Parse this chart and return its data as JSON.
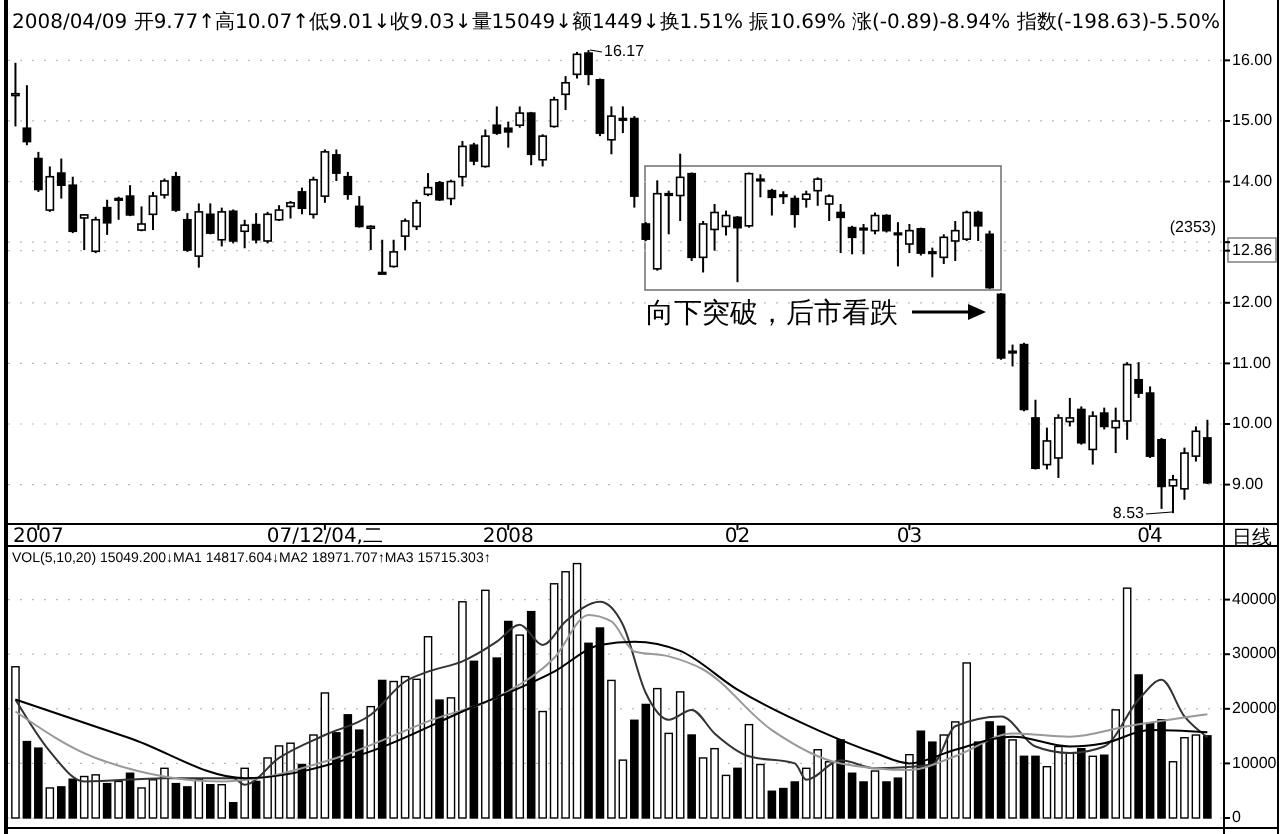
{
  "chart_data": [
    {
      "type": "candlestick",
      "categories": [
        null,
        null,
        "2007",
        null,
        null,
        null,
        null,
        null,
        null,
        null,
        null,
        null,
        null,
        null,
        null,
        null,
        null,
        null,
        null,
        null,
        null,
        null,
        null,
        null,
        null,
        null,
        null,
        "07/12/04,二",
        null,
        null,
        null,
        null,
        null,
        null,
        null,
        null,
        null,
        null,
        null,
        null,
        null,
        null,
        null,
        "2008",
        null,
        null,
        null,
        null,
        null,
        null,
        null,
        null,
        null,
        null,
        null,
        null,
        null,
        null,
        null,
        null,
        null,
        null,
        null,
        "02",
        null,
        null,
        null,
        null,
        null,
        null,
        null,
        null,
        null,
        null,
        null,
        null,
        null,
        null,
        "03",
        null,
        null,
        null,
        null,
        null,
        null,
        null,
        null,
        null,
        null,
        null,
        null,
        null,
        null,
        null,
        null,
        null,
        null,
        null,
        null,
        "04",
        null,
        null,
        null,
        null,
        null
      ],
      "ohlc": [
        [
          15.42,
          15.96,
          14.91,
          15.45
        ],
        [
          14.88,
          15.59,
          14.6,
          14.66
        ],
        [
          14.38,
          14.49,
          13.83,
          13.87
        ],
        [
          13.53,
          14.25,
          13.5,
          14.08
        ],
        [
          14.14,
          14.38,
          13.72,
          13.94
        ],
        [
          13.94,
          14.08,
          13.15,
          13.18
        ],
        [
          13.4,
          13.46,
          12.87,
          13.45
        ],
        [
          12.85,
          13.42,
          12.82,
          13.37
        ],
        [
          13.57,
          13.7,
          13.12,
          13.32
        ],
        [
          13.7,
          13.75,
          13.37,
          13.72
        ],
        [
          13.76,
          13.94,
          13.43,
          13.45
        ],
        [
          13.2,
          13.59,
          13.18,
          13.3
        ],
        [
          13.46,
          13.83,
          13.2,
          13.76
        ],
        [
          13.78,
          14.05,
          13.72,
          14.01
        ],
        [
          14.08,
          14.16,
          13.5,
          13.53
        ],
        [
          13.37,
          13.48,
          12.84,
          12.87
        ],
        [
          12.77,
          13.64,
          12.58,
          13.5
        ],
        [
          13.46,
          13.64,
          13.13,
          13.15
        ],
        [
          13.04,
          13.57,
          12.93,
          13.5
        ],
        [
          13.51,
          13.54,
          12.98,
          13.02
        ],
        [
          13.18,
          13.37,
          12.9,
          13.28
        ],
        [
          13.29,
          13.48,
          12.98,
          13.04
        ],
        [
          13.02,
          13.5,
          12.98,
          13.46
        ],
        [
          13.37,
          13.61,
          13.35,
          13.53
        ],
        [
          13.59,
          13.68,
          13.39,
          13.65
        ],
        [
          13.83,
          13.9,
          13.46,
          13.56
        ],
        [
          13.46,
          14.08,
          13.39,
          14.03
        ],
        [
          13.76,
          14.53,
          13.65,
          14.49
        ],
        [
          14.44,
          14.53,
          14.01,
          14.14
        ],
        [
          14.08,
          14.16,
          13.7,
          13.79
        ],
        [
          13.59,
          13.76,
          13.24,
          13.26
        ],
        [
          13.23,
          13.28,
          12.87,
          13.26
        ],
        [
          12.5,
          13.04,
          12.47,
          12.48
        ],
        [
          12.6,
          13.04,
          12.58,
          12.84
        ],
        [
          13.1,
          13.39,
          12.87,
          13.35
        ],
        [
          13.26,
          13.7,
          13.2,
          13.65
        ],
        [
          13.79,
          14.14,
          13.76,
          13.9
        ],
        [
          13.98,
          14.01,
          13.68,
          13.7
        ],
        [
          13.72,
          14.03,
          13.61,
          14.0
        ],
        [
          14.08,
          14.67,
          13.92,
          14.58
        ],
        [
          14.6,
          14.64,
          14.27,
          14.34
        ],
        [
          14.25,
          14.86,
          14.23,
          14.75
        ],
        [
          14.93,
          15.24,
          14.77,
          14.8
        ],
        [
          14.88,
          14.99,
          14.56,
          14.82
        ],
        [
          14.93,
          15.24,
          14.89,
          15.13
        ],
        [
          15.13,
          15.15,
          14.27,
          14.45
        ],
        [
          14.36,
          14.78,
          14.25,
          14.75
        ],
        [
          14.91,
          15.4,
          14.89,
          15.35
        ],
        [
          15.44,
          15.74,
          15.18,
          15.63
        ],
        [
          15.77,
          16.14,
          15.7,
          16.1
        ],
        [
          16.12,
          16.17,
          15.59,
          15.77
        ],
        [
          15.68,
          15.7,
          14.75,
          14.8
        ],
        [
          14.69,
          15.24,
          14.45,
          15.08
        ],
        [
          15.02,
          15.24,
          14.8,
          15.04
        ],
        [
          15.04,
          15.08,
          13.57,
          13.76
        ],
        [
          13.3,
          13.33,
          13.02,
          13.05
        ],
        [
          12.56,
          14.02,
          12.53,
          13.8
        ],
        [
          13.78,
          13.85,
          13.13,
          13.8
        ],
        [
          13.77,
          14.46,
          13.35,
          14.07
        ],
        [
          14.13,
          14.15,
          12.69,
          12.75
        ],
        [
          12.75,
          13.35,
          12.5,
          13.3
        ],
        [
          13.21,
          13.63,
          12.86,
          13.49
        ],
        [
          13.26,
          13.52,
          13.11,
          13.44
        ],
        [
          13.41,
          13.43,
          12.34,
          13.24
        ],
        [
          13.27,
          14.15,
          13.24,
          14.13
        ],
        [
          14.02,
          14.12,
          13.74,
          14.04
        ],
        [
          13.85,
          13.88,
          13.44,
          13.74
        ],
        [
          13.78,
          13.84,
          13.63,
          13.77
        ],
        [
          13.72,
          13.77,
          13.24,
          13.46
        ],
        [
          13.71,
          13.85,
          13.57,
          13.79
        ],
        [
          13.85,
          14.07,
          13.6,
          14.04
        ],
        [
          13.63,
          13.79,
          13.35,
          13.76
        ],
        [
          13.49,
          13.63,
          12.82,
          13.41
        ],
        [
          13.24,
          13.27,
          12.8,
          13.08
        ],
        [
          13.23,
          13.3,
          12.8,
          13.21
        ],
        [
          13.19,
          13.49,
          13.13,
          13.44
        ],
        [
          13.44,
          13.46,
          13.16,
          13.19
        ],
        [
          13.15,
          13.33,
          12.6,
          13.13
        ],
        [
          12.97,
          13.3,
          12.82,
          13.19
        ],
        [
          13.22,
          13.24,
          12.78,
          12.82
        ],
        [
          12.84,
          12.91,
          12.42,
          12.82
        ],
        [
          12.75,
          13.13,
          12.64,
          13.08
        ],
        [
          13.02,
          13.35,
          12.69,
          13.19
        ],
        [
          13.05,
          13.52,
          13.02,
          13.49
        ],
        [
          13.49,
          13.52,
          13.02,
          13.27
        ],
        [
          13.13,
          13.19,
          12.23,
          12.25
        ],
        [
          12.14,
          12.16,
          11.06,
          11.09
        ],
        [
          11.19,
          11.31,
          10.95,
          11.2
        ],
        [
          11.31,
          11.34,
          10.21,
          10.24
        ],
        [
          10.1,
          10.4,
          9.25,
          9.27
        ],
        [
          9.33,
          9.94,
          9.25,
          9.72
        ],
        [
          9.44,
          10.16,
          9.11,
          10.1
        ],
        [
          10.04,
          10.43,
          9.96,
          10.1
        ],
        [
          10.24,
          10.29,
          9.66,
          9.69
        ],
        [
          9.58,
          10.21,
          9.33,
          10.13
        ],
        [
          10.18,
          10.27,
          9.91,
          9.96
        ],
        [
          9.94,
          10.27,
          9.52,
          10.05
        ],
        [
          10.05,
          11.02,
          9.74,
          10.98
        ],
        [
          10.73,
          11.02,
          10.43,
          10.51
        ],
        [
          10.51,
          10.62,
          9.44,
          9.47
        ],
        [
          9.74,
          9.77,
          8.6,
          8.97
        ],
        [
          8.98,
          9.16,
          8.53,
          9.08
        ],
        [
          8.93,
          9.61,
          8.75,
          9.52
        ],
        [
          9.47,
          9.96,
          9.38,
          9.88
        ],
        [
          9.77,
          10.07,
          9.01,
          9.03
        ]
      ],
      "ylim": [
        8.35,
        16.93
      ],
      "yticks": [
        {
          "value": 9,
          "label": "9.00"
        },
        {
          "value": 10,
          "label": "10.00"
        },
        {
          "value": 11,
          "label": "11.00"
        },
        {
          "value": 12,
          "label": "12.00"
        },
        {
          "value": 12.86,
          "label": "12.86"
        },
        {
          "value": 13,
          "label": null
        },
        {
          "value": 14,
          "label": "14.00"
        },
        {
          "value": 15,
          "label": "15.00"
        },
        {
          "value": 16,
          "label": "16.00"
        }
      ],
      "grid": "y",
      "annotations": [
        "2008/04/09 开9.77↑高10.07↑低9.01↓收9.03↓量15049↓额1449↓换1.51% 振10.69% 涨(-0.89)-8.94% 指数(-198.63)-5.50%",
        "16.17",
        "8.53",
        "向下突破，后市看跌",
        "(2353)",
        "日线"
      ]
    },
    {
      "type": "bar",
      "categories": [
        null,
        null,
        null,
        null,
        null,
        null,
        null,
        null,
        null,
        null,
        null,
        null,
        null,
        null,
        null,
        null,
        null,
        null,
        null,
        null,
        null,
        null,
        null,
        null,
        null,
        null,
        null,
        null,
        null,
        null,
        null,
        null,
        null,
        null,
        null,
        null,
        null,
        null,
        null,
        null,
        null,
        null,
        null,
        null,
        null,
        null,
        null,
        null,
        null,
        null,
        null,
        null,
        null,
        null,
        null,
        null,
        null,
        null,
        null,
        null,
        null,
        null,
        null,
        null,
        null,
        null,
        null,
        null,
        null,
        null,
        null,
        null,
        null,
        null,
        null,
        null,
        null,
        null,
        null,
        null,
        null,
        null,
        null,
        null,
        null,
        null,
        null,
        null,
        null,
        null,
        null,
        null,
        null,
        null,
        null,
        null,
        null,
        null,
        null,
        null,
        null,
        null,
        null,
        null,
        null
      ],
      "series": [
        {
          "type": "bar",
          "values": [
            27700,
            14000,
            12800,
            5500,
            5700,
            7100,
            7600,
            7900,
            6300,
            6700,
            8200,
            5500,
            7000,
            9100,
            6300,
            5700,
            7000,
            6100,
            6100,
            2800,
            9100,
            6700,
            11000,
            13200,
            13700,
            9800,
            15200,
            22900,
            15600,
            18900,
            16100,
            20400,
            25200,
            25000,
            25900,
            25400,
            33200,
            21600,
            22000,
            39600,
            28700,
            41700,
            29300,
            36000,
            33500,
            37800,
            19500,
            42900,
            45100,
            46600,
            32000,
            34800,
            25200,
            10600,
            17900,
            20800,
            23700,
            15500,
            23100,
            15200,
            11000,
            12700,
            7800,
            9100,
            17100,
            9800,
            4900,
            5400,
            6600,
            9100,
            12500,
            10300,
            14300,
            8200,
            6600,
            8600,
            6600,
            7300,
            11600,
            15900,
            13900,
            15200,
            17600,
            28400,
            13900,
            17600,
            16800,
            14300,
            11300,
            11300,
            9400,
            13100,
            11900,
            12700,
            11300,
            11500,
            19800,
            42100,
            26200,
            17400,
            18000,
            10300,
            14700,
            15200,
            15049
          ],
          "colors": [
            "#ffffff",
            "#000000",
            "#000000",
            "#ffffff",
            "#000000",
            "#000000",
            "#ffffff",
            "#ffffff",
            "#000000",
            "#ffffff",
            "#000000",
            "#ffffff",
            "#ffffff",
            "#ffffff",
            "#000000",
            "#000000",
            "#ffffff",
            "#000000",
            "#ffffff",
            "#000000",
            "#ffffff",
            "#000000",
            "#ffffff",
            "#ffffff",
            "#ffffff",
            "#000000",
            "#ffffff",
            "#ffffff",
            "#000000",
            "#000000",
            "#000000",
            "#ffffff",
            "#000000",
            "#ffffff",
            "#ffffff",
            "#ffffff",
            "#ffffff",
            "#000000",
            "#ffffff",
            "#ffffff",
            "#000000",
            "#ffffff",
            "#000000",
            "#000000",
            "#ffffff",
            "#000000",
            "#ffffff",
            "#ffffff",
            "#ffffff",
            "#ffffff",
            "#000000",
            "#000000",
            "#ffffff",
            "#ffffff",
            "#000000",
            "#000000",
            "#ffffff",
            "#ffffff",
            "#ffffff",
            "#000000",
            "#ffffff",
            "#ffffff",
            "#ffffff",
            "#000000",
            "#ffffff",
            "#ffffff",
            "#000000",
            "#000000",
            "#000000",
            "#ffffff",
            "#ffffff",
            "#ffffff",
            "#000000",
            "#000000",
            "#000000",
            "#ffffff",
            "#000000",
            "#000000",
            "#ffffff",
            "#000000",
            "#000000",
            "#ffffff",
            "#ffffff",
            "#ffffff",
            "#000000",
            "#000000",
            "#000000",
            "#ffffff",
            "#000000",
            "#000000",
            "#ffffff",
            "#ffffff",
            "#ffffff",
            "#000000",
            "#ffffff",
            "#000000",
            "#ffffff",
            "#ffffff",
            "#000000",
            "#000000",
            "#000000",
            "#ffffff",
            "#ffffff",
            "#ffffff",
            "#000000"
          ]
        },
        {
          "type": "line",
          "color": "#333333",
          "values": [
            21700,
            null,
            null,
            12200,
            null,
            null,
            6700,
            null,
            null,
            null,
            null,
            null,
            null,
            7300,
            null,
            null,
            null,
            null,
            null,
            7300,
            6100,
            null,
            null,
            11000,
            null,
            null,
            null,
            15200,
            null,
            null,
            null,
            18900,
            null,
            null,
            25000,
            null,
            26800,
            null,
            null,
            28700,
            null,
            null,
            32300,
            null,
            35400,
            null,
            31700,
            null,
            36000,
            null,
            null,
            39600,
            null,
            35400,
            null,
            22900,
            null,
            18000,
            null,
            19800,
            null,
            15500,
            null,
            null,
            11300,
            null,
            null,
            null,
            10000,
            7000,
            null,
            null,
            10600,
            null,
            null,
            9100,
            null,
            null,
            null,
            null,
            9800,
            null,
            16800,
            null,
            null,
            null,
            18600,
            null,
            null,
            13100,
            null,
            null,
            11900,
            null,
            null,
            13100,
            null,
            null,
            21700,
            null,
            25300,
            null,
            18600,
            null,
            14800
          ]
        },
        {
          "type": "line",
          "color": "#999999",
          "values": [
            19500,
            null,
            null,
            null,
            null,
            null,
            null,
            11000,
            null,
            null,
            null,
            null,
            null,
            null,
            null,
            null,
            null,
            null,
            6700,
            null,
            null,
            null,
            null,
            null,
            null,
            null,
            null,
            null,
            11000,
            null,
            null,
            null,
            null,
            null,
            null,
            null,
            17700,
            null,
            null,
            null,
            null,
            null,
            null,
            23200,
            null,
            null,
            null,
            29300,
            null,
            null,
            37200,
            null,
            36000,
            null,
            30500,
            null,
            null,
            29600,
            null,
            null,
            27200,
            null,
            null,
            null,
            null,
            null,
            16100,
            null,
            null,
            null,
            null,
            null,
            10000,
            null,
            null,
            null,
            null,
            null,
            8800,
            null,
            null,
            null,
            11300,
            null,
            null,
            null,
            null,
            15500,
            null,
            null,
            null,
            null,
            14900,
            null,
            null,
            null,
            null,
            16800,
            null,
            null,
            null,
            null,
            null,
            null,
            19000
          ]
        },
        {
          "type": "line",
          "color": "#000000",
          "values": [
            21700,
            null,
            null,
            null,
            null,
            null,
            null,
            null,
            null,
            null,
            14600,
            null,
            null,
            null,
            null,
            null,
            null,
            null,
            null,
            null,
            7300,
            null,
            null,
            null,
            null,
            null,
            null,
            null,
            null,
            null,
            null,
            12200,
            null,
            null,
            null,
            null,
            null,
            null,
            null,
            19500,
            null,
            null,
            null,
            null,
            null,
            null,
            null,
            26800,
            null,
            null,
            null,
            31700,
            null,
            null,
            32300,
            null,
            null,
            null,
            30600,
            null,
            null,
            null,
            null,
            23500,
            null,
            null,
            null,
            null,
            null,
            null,
            16100,
            null,
            null,
            null,
            null,
            11900,
            null,
            null,
            10000,
            null,
            null,
            null,
            12500,
            null,
            null,
            null,
            null,
            14900,
            null,
            null,
            null,
            null,
            13100,
            null,
            null,
            13700,
            null,
            null,
            null,
            16100,
            null,
            null,
            null,
            null,
            15700
          ]
        }
      ],
      "ylim": [
        0,
        47000
      ],
      "yticks": [
        0,
        10000,
        20000,
        30000,
        40000
      ],
      "grid": "y",
      "tick_labels": "y",
      "annotations": [
        "VOL(5,10,20) 15049.200↓MA1 14817.604↓MA2 18971.707↑MA3 15715.303↑"
      ]
    }
  ]
}
